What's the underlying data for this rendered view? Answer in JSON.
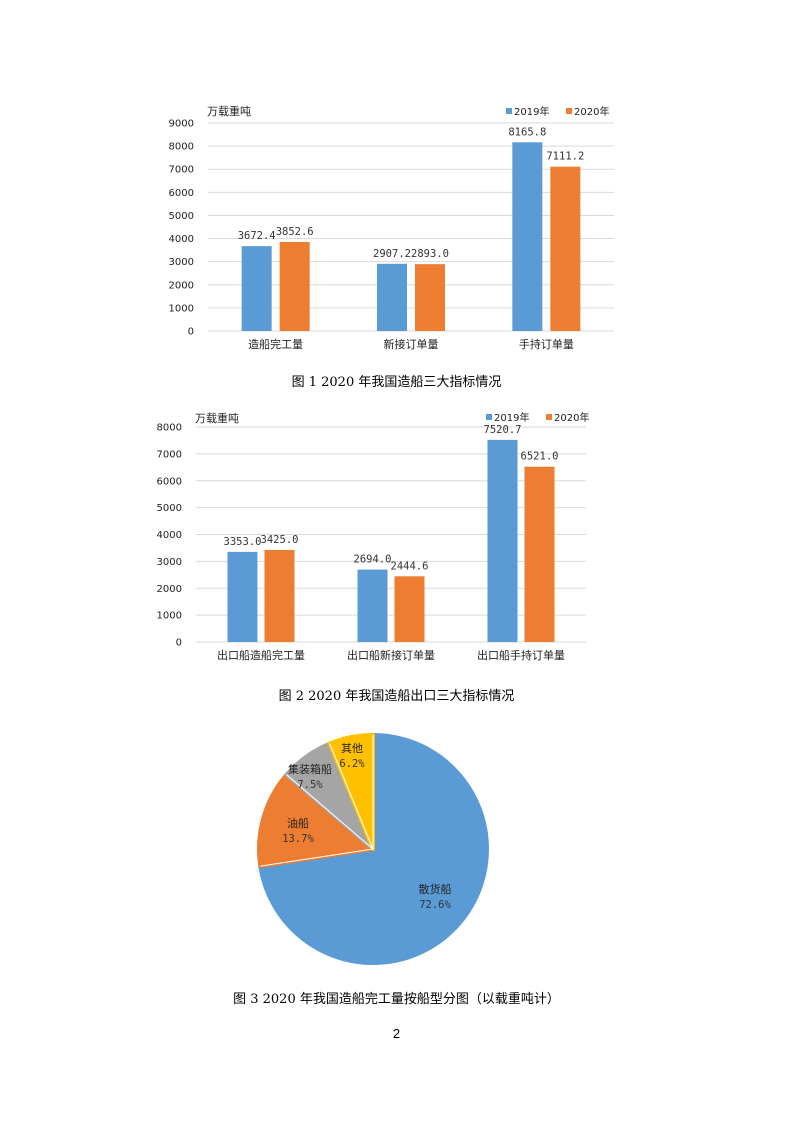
{
  "chart_data": [
    {
      "type": "bar",
      "title": "",
      "ylabel": "万载重吨",
      "ylim": [
        0,
        9000
      ],
      "yticks": [
        "0",
        "1000",
        "2000",
        "3000",
        "4000",
        "5000",
        "6000",
        "7000",
        "8000",
        "9000"
      ],
      "categories": [
        "造船完工量",
        "新接订单量",
        "手持订单量"
      ],
      "series": [
        {
          "name": "2019年",
          "color": "#5b9bd5",
          "values": [
            3672.4,
            2907.2,
            8165.8
          ],
          "labels": [
            "3672.4",
            "2907.2",
            "8165.8"
          ]
        },
        {
          "name": "2020年",
          "color": "#ed7d31",
          "values": [
            3852.6,
            2893.0,
            7111.2
          ],
          "labels": [
            "3852.6",
            "2893.0",
            "7111.2"
          ]
        }
      ],
      "legend_position": "top-right",
      "grid": true,
      "caption": "图 1 2020 年我国造船三大指标情况"
    },
    {
      "type": "bar",
      "title": "",
      "ylabel": "万载重吨",
      "ylim": [
        0,
        8000
      ],
      "yticks": [
        "0",
        "1000",
        "2000",
        "3000",
        "4000",
        "5000",
        "6000",
        "7000",
        "8000"
      ],
      "categories": [
        "出口船造船完工量",
        "出口船新接订单量",
        "出口船手持订单量"
      ],
      "series": [
        {
          "name": "2019年",
          "color": "#5b9bd5",
          "values": [
            3353.0,
            2694.0,
            7520.7
          ],
          "labels": [
            "3353.0",
            "2694.0",
            "7520.7"
          ]
        },
        {
          "name": "2020年",
          "color": "#ed7d31",
          "values": [
            3425.0,
            2444.6,
            6521.0
          ],
          "labels": [
            "3425.0",
            "2444.6",
            "6521.0"
          ]
        }
      ],
      "legend_position": "top-right",
      "grid": true,
      "caption": "图 2 2020 年我国造船出口三大指标情况"
    },
    {
      "type": "pie",
      "title": "",
      "slices": [
        {
          "name": "散货船",
          "value": 72.6,
          "label": "72.6%",
          "color": "#5b9bd5"
        },
        {
          "name": "油船",
          "value": 13.7,
          "label": "13.7%",
          "color": "#ed7d31"
        },
        {
          "name": "集装箱船",
          "value": 7.5,
          "label": "7.5%",
          "color": "#a5a5a5"
        },
        {
          "name": "其他",
          "value": 6.2,
          "label": "6.2%",
          "color": "#ffc000"
        }
      ],
      "caption": "图 3 2020 年我国造船完工量按船型分图（以载重吨计）"
    }
  ],
  "page": {
    "number": "2"
  }
}
